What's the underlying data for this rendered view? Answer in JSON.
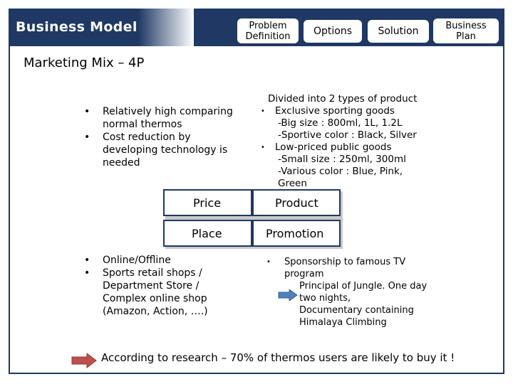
{
  "header": {
    "title": "Business Model",
    "tabs": [
      {
        "label_line1": "Problem",
        "label_line2": "Definition"
      },
      {
        "label": "Options"
      },
      {
        "label": "Solution"
      },
      {
        "label_line1": "Business",
        "label_line2": "Plan"
      }
    ]
  },
  "section_title": "Marketing Mix – 4P",
  "price_points": [
    "Relatively high comparing normal thermos",
    "Cost reduction by developing technology is needed"
  ],
  "product": {
    "heading": "Divided into 2 types of product",
    "items": [
      {
        "label": "Exclusive sporting goods",
        "details": [
          "-Big size : 800ml, 1L, 1.2L",
          "-Sportive color : Black, Silver"
        ]
      },
      {
        "label": "Low-priced public goods",
        "details": [
          "-Small size : 250ml, 300ml",
          "-Various color : Blue, Pink, Green"
        ]
      }
    ]
  },
  "quadrants": {
    "price": "Price",
    "product": "Product",
    "place": "Place",
    "promotion": "Promotion"
  },
  "place_points": [
    "Online/Offline",
    "Sports retail shops / Department Store / Complex online shop (Amazon, Action, ….)"
  ],
  "promotion": {
    "items": [
      {
        "label": "Sponsorship to famous TV program",
        "details": [
          "Principal of Jungle. One day two nights,",
          "Documentary containing Himalaya Climbing"
        ]
      }
    ]
  },
  "footer": {
    "text": "According to research – 70% of thermos users are likely to buy it !"
  },
  "colors": {
    "primary": "#1f3864",
    "arrow_fill": "#c0504d",
    "arrow_small_fill": "#4f81bd"
  },
  "bullet_glyph": "•"
}
